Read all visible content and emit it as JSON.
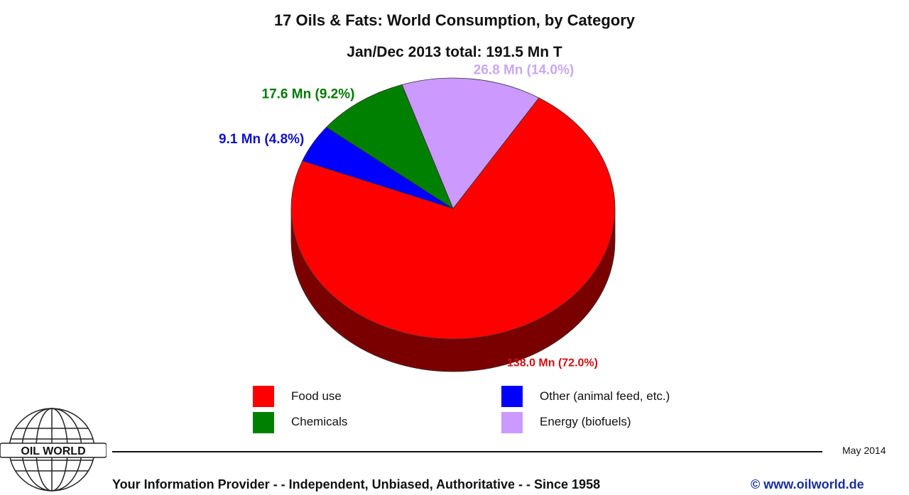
{
  "chart_data": {
    "type": "pie",
    "title": "17 Oils & Fats: World Consumption, by Category",
    "subtitle": "Jan/Dec 2013 total: 191.5 Mn T",
    "slices": [
      {
        "name": "Food use",
        "value": 138.0,
        "percent": 72.0,
        "label": "138.0 Mn (72.0%)",
        "color": "#ff0000",
        "side_color": "#7a0000"
      },
      {
        "name": "Other (animal feed, etc.)",
        "value": 9.1,
        "percent": 4.8,
        "label": "9.1 Mn (4.8%)",
        "color": "#0000ff",
        "side_color": "#00007a"
      },
      {
        "name": "Chemicals",
        "value": 17.6,
        "percent": 9.2,
        "label": "17.6 Mn (9.2%)",
        "color": "#008000",
        "side_color": "#003a00"
      },
      {
        "name": "Energy (biofuels)",
        "value": 26.8,
        "percent": 14.0,
        "label": "26.8 Mn (14.0%)",
        "color": "#cc99ff",
        "side_color": "#7d5aa3"
      }
    ],
    "label_colors": {
      "Food use": "#cc1111",
      "Other (animal feed, etc.)": "#1010cc",
      "Chemicals": "#007a00",
      "Energy (biofuels)": "#c9a8f2"
    },
    "legend_placement": "bottom"
  },
  "legend": {
    "items": [
      {
        "label": "Food use",
        "color": "#ff0000"
      },
      {
        "label": "Chemicals",
        "color": "#008000"
      },
      {
        "label": "Other (animal feed, etc.)",
        "color": "#0000ff"
      },
      {
        "label": "Energy (biofuels)",
        "color": "#cc99ff"
      }
    ]
  },
  "footer": {
    "logo_text": "OIL WORLD",
    "date": "May 2014",
    "tagline": "Your Information Provider - - Independent, Unbiased, Authoritative - - Since 1958",
    "url": "© www.oilworld.de"
  }
}
